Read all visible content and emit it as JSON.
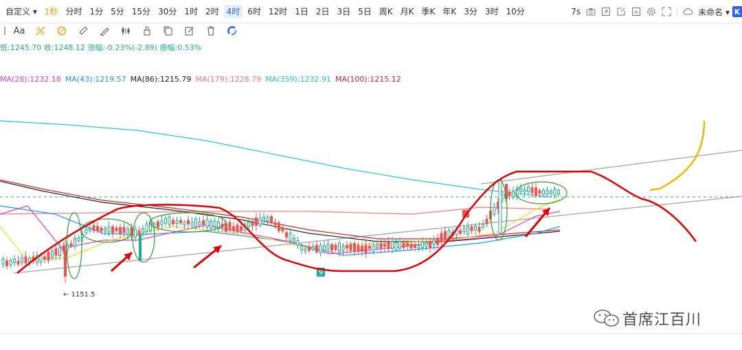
{
  "topbar": {
    "left_items": [
      {
        "label": "自定义",
        "has_chevron": true
      },
      {
        "label": "1秒",
        "accent": true
      },
      {
        "label": "分时"
      },
      {
        "label": "1分"
      },
      {
        "label": "5分"
      },
      {
        "label": "15分"
      },
      {
        "label": "30分"
      },
      {
        "label": "1时"
      },
      {
        "label": "2时"
      },
      {
        "label": "4时",
        "active": true
      },
      {
        "label": "6时"
      },
      {
        "label": "12时"
      },
      {
        "label": "1日"
      },
      {
        "label": "2日"
      },
      {
        "label": "3日"
      },
      {
        "label": "5日"
      },
      {
        "label": "周K"
      },
      {
        "label": "月K"
      },
      {
        "label": "季K"
      },
      {
        "label": "年K"
      },
      {
        "label": "3分"
      },
      {
        "label": "3时"
      },
      {
        "label": "10分"
      }
    ],
    "right_interval": "7s",
    "right_icons": [
      "camera-icon",
      "share-icon",
      "new-window-icon",
      "fullscreen-icon",
      "settings-icon",
      "expand-icon"
    ],
    "cloud_label": "未命名",
    "k_badge": "K"
  },
  "toolbar2": {
    "icons": [
      "frame-icon",
      "text-tool-icon",
      "pattern-icon",
      "shape-icon",
      "ruler-icon",
      "brush-icon",
      "bars-icon",
      "lock-icon",
      "copy-icon",
      "edit-icon",
      "trash-icon",
      "magnet-icon"
    ],
    "text_tool_label": "Aa"
  },
  "legend": {
    "ohlc": "低:1245.70 收:1248.12 涨幅:-0.23%(-2.89) 振幅:0.53%",
    "ma": [
      {
        "label": "MA(28):1232.18",
        "color": "#e040c0"
      },
      {
        "label": "MA(43):1219.57",
        "color": "#2196f3"
      },
      {
        "label": "MA(86):1215.79",
        "color": "#222222"
      },
      {
        "label": "MA(179):1228.79",
        "color": "#ef7a7a"
      },
      {
        "label": "MA(359):1232.91",
        "color": "#26c6da"
      },
      {
        "label": "MA(100):1215.12",
        "color": "#c62828"
      }
    ]
  },
  "chart": {
    "low_marker": "← 1151.5",
    "badge_9": "9",
    "badge_red": "9"
  },
  "watermark": {
    "text": "首席江百川",
    "icon": "wechat-icon"
  },
  "colors": {
    "accent": "#f0a000",
    "active": "#2962ff",
    "up": "#22ab94",
    "down": "#ef5350",
    "annotation_red": "#e00000",
    "annotation_green": "#2e9e2e",
    "annotation_yellow": "#f5b400"
  }
}
